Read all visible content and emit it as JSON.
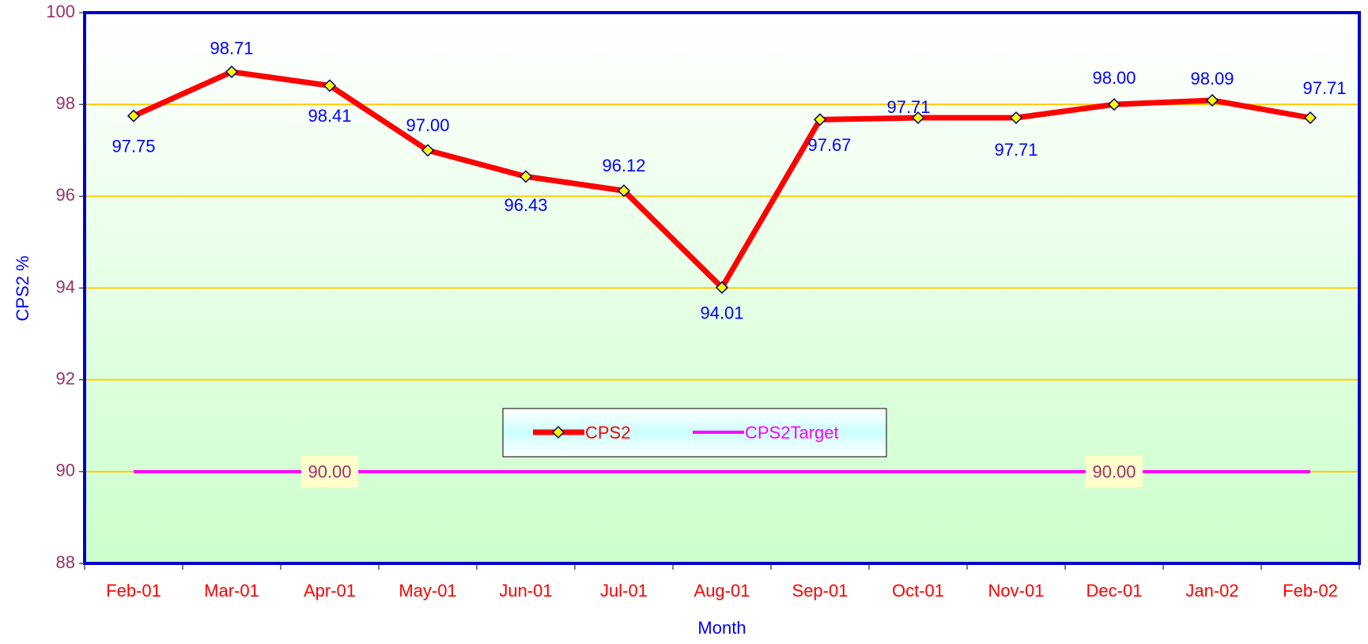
{
  "chart_data": {
    "type": "line",
    "categories": [
      "Feb-01",
      "Mar-01",
      "Apr-01",
      "May-01",
      "Jun-01",
      "Jul-01",
      "Aug-01",
      "Sep-01",
      "Oct-01",
      "Nov-01",
      "Dec-01",
      "Jan-02",
      "Feb-02"
    ],
    "series": [
      {
        "name": "CPS2",
        "color": "#ff0000",
        "marker_color": "#ffff00",
        "values": [
          97.75,
          98.71,
          98.41,
          97.0,
          96.43,
          96.12,
          94.01,
          97.67,
          97.71,
          97.71,
          98.0,
          98.09,
          97.71
        ],
        "value_labels": [
          "97.75",
          "98.71",
          "98.41",
          "97.00",
          "96.43",
          "96.12",
          "94.01",
          "97.67",
          "97.71",
          "97.71",
          "98.00",
          "98.09",
          "97.71"
        ]
      },
      {
        "name": "CPS2Target",
        "color": "#ff00ff",
        "values": [
          90,
          90,
          90,
          90,
          90,
          90,
          90,
          90,
          90,
          90,
          90,
          90,
          90
        ],
        "value_labels": [
          null,
          null,
          "90.00",
          null,
          null,
          null,
          null,
          null,
          null,
          null,
          "90.00",
          null,
          null
        ]
      }
    ],
    "xlabel": "Month",
    "ylabel": "CPS2  %",
    "ylim": [
      88,
      100
    ],
    "yticks": [
      88,
      90,
      92,
      94,
      96,
      98,
      100
    ],
    "grid": true
  }
}
